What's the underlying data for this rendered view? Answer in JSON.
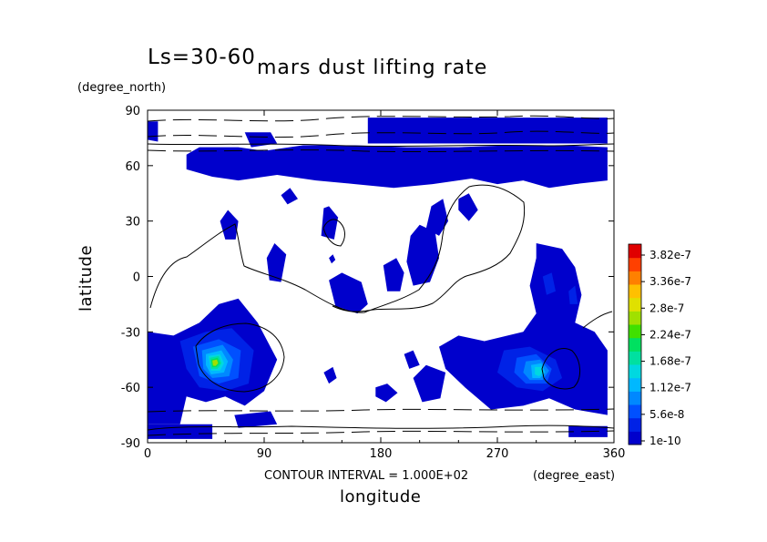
{
  "chart_data": {
    "type": "heatmap",
    "title": "mars dust lifting rate",
    "subtitle": "Ls=30-60",
    "xlabel": "longitude",
    "ylabel": "latitude",
    "x_units": "(degree_east)",
    "y_units": "(degree_north)",
    "contour_note": "CONTOUR INTERVAL = 1.000E+02",
    "xlim": [
      0,
      360
    ],
    "ylim": [
      -90,
      90
    ],
    "x_ticks": [
      "0",
      "90",
      "180",
      "270",
      "360"
    ],
    "y_ticks": [
      "90",
      "60",
      "30",
      "0",
      "-30",
      "-60",
      "-90"
    ],
    "colorbar": {
      "labels": [
        "3.82e-7",
        "3.36e-7",
        "2.8e-7",
        "2.24e-7",
        "1.68e-7",
        "1.12e-7",
        "5.6e-8",
        "1e-10"
      ],
      "colors": [
        "#0000cc",
        "#0022e6",
        "#0050ff",
        "#0088ff",
        "#00b8ff",
        "#00d8e0",
        "#00e0a0",
        "#00e060",
        "#40e000",
        "#a0e000",
        "#e0e000",
        "#ffc000",
        "#ff8000",
        "#ff4000",
        "#e00000"
      ]
    },
    "fill_regions": [
      {
        "name": "north-polar-band",
        "level": 1,
        "lon": [
          170,
          355
        ],
        "lat": [
          60,
          90
        ]
      },
      {
        "name": "north-midlat-band",
        "level": 1,
        "lon": [
          30,
          355
        ],
        "lat": [
          45,
          70
        ]
      },
      {
        "name": "southwest-dust-source",
        "level": 9,
        "lon": [
          0,
          100
        ],
        "lat": [
          -80,
          -20
        ]
      },
      {
        "name": "southeast-dust-source",
        "level": 7,
        "lon": [
          225,
          355
        ],
        "lat": [
          -75,
          30
        ]
      },
      {
        "name": "south-polar-strip",
        "level": 1,
        "lon": [
          0,
          355
        ],
        "lat": [
          -90,
          -80
        ]
      }
    ],
    "peak_values": [
      {
        "lon": 52,
        "lat": -47,
        "value": 2.2e-07
      },
      {
        "lon": 302,
        "lat": -52,
        "value": 1.5e-07
      }
    ]
  }
}
